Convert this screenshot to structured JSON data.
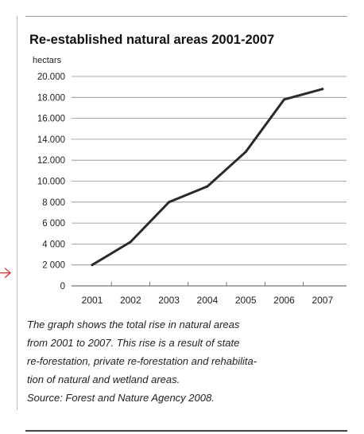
{
  "chart_data": {
    "type": "line",
    "title": "Re-established natural areas 2001-2007",
    "ylabel": "hectars",
    "xlabel": "",
    "categories": [
      "2001",
      "2002",
      "2003",
      "2004",
      "2005",
      "2006",
      "2007"
    ],
    "series": [
      {
        "values": [
          2000,
          4200,
          8000,
          9500,
          12800,
          17800,
          18800
        ]
      }
    ],
    "ylim": [
      0,
      20000
    ],
    "yticks": [
      0,
      2000,
      4000,
      6000,
      8000,
      10000,
      12000,
      14000,
      16000,
      18000,
      20000
    ],
    "ytick_labels": [
      "0",
      "2 000",
      "4 000",
      "6 000",
      "8 000",
      "10.000",
      "12.000",
      "14.000",
      "16.000",
      "18.000",
      "20.000"
    ],
    "grid": "horizontal",
    "line_color": "#2a2a2a"
  },
  "caption": {
    "lines": [
      "The graph shows the total rise in natural areas",
      "from 2001 to 2007. This rise is a result of state",
      "re-forestation, private re-forestation and rehabilita-",
      "tion of natural and wetland areas."
    ],
    "source": "Source: Forest and Nature Agency 2008."
  },
  "annotation": {
    "arrow_color": "#e02020"
  }
}
